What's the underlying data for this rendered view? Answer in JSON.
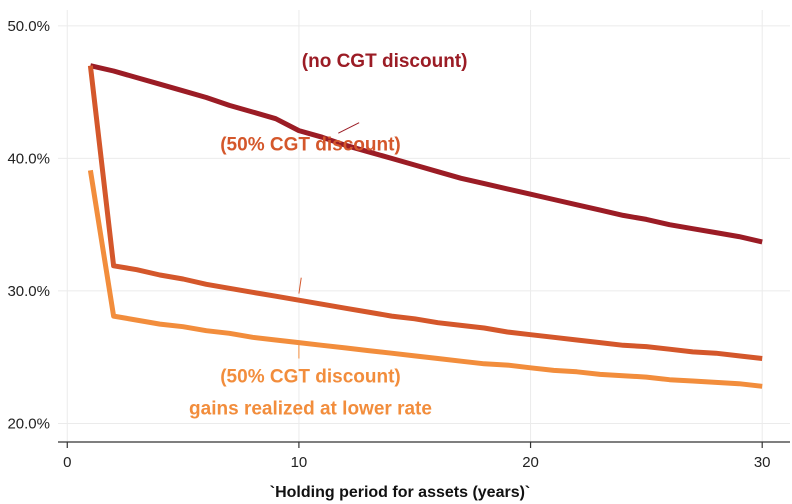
{
  "chart_data": {
    "type": "line",
    "title": "",
    "xlabel": "`Holding period for assets (years)`",
    "ylabel": "",
    "xlim": [
      -0.4,
      31.2
    ],
    "ylim": [
      18.6,
      51.2
    ],
    "xticks": [
      0,
      10,
      20,
      30
    ],
    "xtick_labels": [
      "0",
      "10",
      "20",
      "30"
    ],
    "yticks": [
      20,
      30,
      40,
      50
    ],
    "ytick_labels": [
      "20.0%",
      "30.0%",
      "40.0%",
      "50.0%"
    ],
    "grid": true,
    "legend": "none",
    "series": [
      {
        "color": "#9b1c25",
        "x": [
          1,
          2,
          3,
          4,
          5,
          6,
          7,
          8,
          9,
          10,
          11,
          12,
          13,
          14,
          15,
          16,
          17,
          18,
          19,
          20,
          21,
          22,
          23,
          24,
          25,
          26,
          27,
          28,
          29,
          30
        ],
        "y": [
          47.0,
          46.6,
          46.1,
          45.6,
          45.1,
          44.6,
          44.0,
          43.5,
          43.0,
          42.1,
          41.6,
          41.0,
          40.5,
          40.0,
          39.5,
          39.0,
          38.5,
          38.1,
          37.7,
          37.3,
          36.9,
          36.5,
          36.1,
          35.7,
          35.4,
          35.0,
          34.7,
          34.4,
          34.1,
          33.7
        ]
      },
      {
        "color": "#d4572b",
        "x": [
          1,
          2,
          3,
          4,
          5,
          6,
          7,
          8,
          9,
          10,
          11,
          12,
          13,
          14,
          15,
          16,
          17,
          18,
          19,
          20,
          21,
          22,
          23,
          24,
          25,
          26,
          27,
          28,
          29,
          30
        ],
        "y": [
          47.0,
          31.9,
          31.6,
          31.2,
          30.9,
          30.5,
          30.2,
          29.9,
          29.6,
          29.3,
          29.0,
          28.7,
          28.4,
          28.1,
          27.9,
          27.6,
          27.4,
          27.2,
          26.9,
          26.7,
          26.5,
          26.3,
          26.1,
          25.9,
          25.8,
          25.6,
          25.4,
          25.3,
          25.1,
          24.9
        ]
      },
      {
        "color": "#f28d3c",
        "x": [
          1,
          2,
          3,
          4,
          5,
          6,
          7,
          8,
          9,
          10,
          11,
          12,
          13,
          14,
          15,
          16,
          17,
          18,
          19,
          20,
          21,
          22,
          23,
          24,
          25,
          26,
          27,
          28,
          29,
          30
        ],
        "y": [
          39.1,
          28.1,
          27.8,
          27.5,
          27.3,
          27.0,
          26.8,
          26.5,
          26.3,
          26.1,
          25.9,
          25.7,
          25.5,
          25.3,
          25.1,
          24.9,
          24.7,
          24.5,
          24.4,
          24.2,
          24.0,
          23.9,
          23.7,
          23.6,
          23.5,
          23.3,
          23.2,
          23.1,
          23.0,
          22.8
        ]
      }
    ],
    "annotations": [
      {
        "lines": [
          "(no CGT discount)"
        ],
        "color": "#9b1c25",
        "x": 13.7,
        "y": 46.9,
        "pointer": [
          [
            11.7,
            41.9
          ],
          [
            12.6,
            42.7
          ]
        ]
      },
      {
        "lines": [
          "(50% CGT discount)"
        ],
        "color": "#d4572b",
        "x": 10.5,
        "y": 40.6,
        "pointer": [
          [
            10.0,
            29.8
          ],
          [
            10.1,
            31.0
          ]
        ],
        "y_units": "line"
      },
      {
        "lines": [
          "(50% CGT discount)",
          "gains realized at lower rate"
        ],
        "color": "#f28d3c",
        "x": 10.5,
        "y": 23.1,
        "pointer": [
          [
            10.0,
            24.9
          ],
          [
            10.0,
            26.0
          ]
        ]
      }
    ]
  }
}
